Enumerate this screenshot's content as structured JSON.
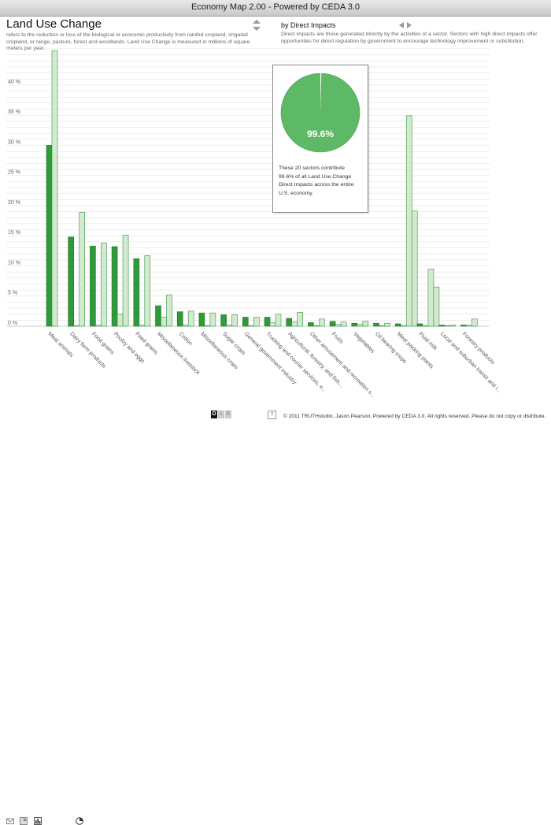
{
  "window": {
    "title": "Economy Map 2.00 - Powered by CEDA 3.0"
  },
  "header": {
    "title": "Land Use Change",
    "description": "refers to the reduction or loss of the biological or economic productivity from rainfed cropland, irrigated cropland, or range, pasture, forest and woodlands.  Land Use Change is measured in millions of square meters per year."
  },
  "view": {
    "title": "by Direct Impacts",
    "description": "Direct impacts are those generated directly by the activities of a sector.  Sectors with high direct impacts offer opportunities for direct regulation by government to encourage technology improvement or substitution."
  },
  "tooltip": {
    "percent_label": "99.6%",
    "percent_value": 99.6,
    "text": "These 20 sectors contribute 99.6% of all Land Use Change Direct Impacts across the entire U.S. economy."
  },
  "colors": {
    "dark": "#2f9a3a",
    "light": "#d3ead0",
    "pie": "#5db965"
  },
  "icons": [
    "mail-icon",
    "photo-icon",
    "bar-chart-icon",
    "pie-chart-icon"
  ],
  "view_switch": [
    "D",
    "I",
    "F"
  ],
  "help": "?",
  "footer": {
    "copyright": "© 2011 TRUTHstudio, Jason Pearson. Powered by CEDA 3.0. All rights reserved. Please do not copy or distribute."
  },
  "chart_data": {
    "type": "bar",
    "title": "Land Use Change",
    "ylim": [
      0,
      46
    ],
    "yticks": [
      "0 %",
      "5 %",
      "10 %",
      "15 %",
      "20 %",
      "25 %",
      "30 %",
      "35 %",
      "40 %"
    ],
    "grid": true,
    "categories": [
      "Meat animals",
      "Dairy farm products",
      "Food grains",
      "Poultry and eggs",
      "Feed grains",
      "Miscellaneous livestock",
      "Cotton",
      "Miscellaneous crops",
      "Sugar crops",
      "General government industry",
      "Trucking and courier services, e...",
      "Agricultural, forestry, and fish...",
      "Other amusement and recreation s...",
      "Fruits",
      "Vegetables",
      "Oil bearing crops",
      "Meat packing plants",
      "Fluid milk",
      "Local and suburban transit and i...",
      "Forestry products"
    ],
    "series": [
      {
        "values": [
          30,
          14.8,
          13.3,
          13.2,
          11.2,
          3.4,
          2.4,
          2.2,
          1.9,
          1.5,
          1.5,
          1.3,
          0.6,
          0.8,
          0.5,
          0.5,
          0.4,
          0.4,
          0.2,
          0.2
        ]
      },
      {
        "values": [
          45.7,
          0.1,
          0.2,
          2.0,
          0.2,
          1.5,
          0.2,
          0.1,
          0.2,
          0.1,
          0.6,
          0.7,
          0.1,
          0.3,
          0.3,
          0.1,
          0.1,
          0.1,
          0.1,
          0.2
        ]
      },
      {
        "values": [
          0,
          18.9,
          13.8,
          15.1,
          11.7,
          5.2,
          2.5,
          2.2,
          1.9,
          1.5,
          2.0,
          2.3,
          1.2,
          0.7,
          0.8,
          0.5,
          34.9,
          9.5,
          0.2,
          1.2
        ]
      },
      {
        "values": [
          0,
          0,
          0,
          0,
          0,
          0,
          0,
          0,
          0,
          0,
          0,
          0,
          0,
          0,
          0,
          0,
          19.1,
          6.5,
          0,
          0
        ]
      }
    ]
  }
}
